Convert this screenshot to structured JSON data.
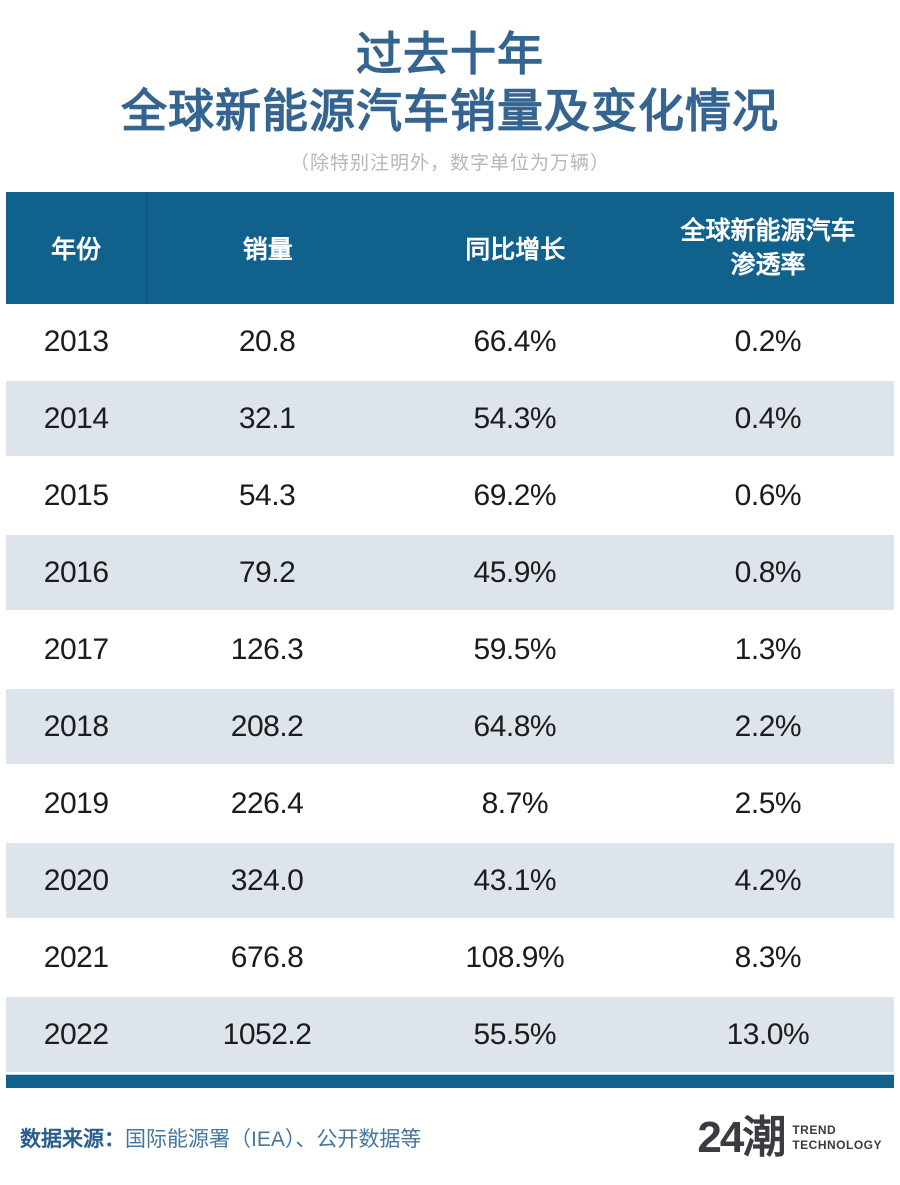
{
  "page": {
    "title_line1": "过去十年",
    "title_line2": "全球新能源汽车销量及变化情况",
    "subtitle": "（除特别注明外，数字单位为万辆）"
  },
  "colors": {
    "title_blue": "#34648f",
    "header_bg": "#11618d",
    "row_alt_bg": "#dde4ec",
    "footer_label_blue": "#2a5e8b",
    "footer_text_blue": "#45779e",
    "logo_dark": "#3b3b41"
  },
  "table": {
    "header": {
      "year": "年份",
      "sales": "销量",
      "yoy": "同比增长",
      "pen_line1": "全球新能源汽车",
      "pen_line2": "渗透率"
    },
    "rows": [
      {
        "year": "2013",
        "sales": "20.8",
        "yoy": "66.4%",
        "pen": "0.2%"
      },
      {
        "year": "2014",
        "sales": "32.1",
        "yoy": "54.3%",
        "pen": "0.4%"
      },
      {
        "year": "2015",
        "sales": "54.3",
        "yoy": "69.2%",
        "pen": "0.6%"
      },
      {
        "year": "2016",
        "sales": "79.2",
        "yoy": "45.9%",
        "pen": "0.8%"
      },
      {
        "year": "2017",
        "sales": "126.3",
        "yoy": "59.5%",
        "pen": "1.3%"
      },
      {
        "year": "2018",
        "sales": "208.2",
        "yoy": "64.8%",
        "pen": "2.2%"
      },
      {
        "year": "2019",
        "sales": "226.4",
        "yoy": "8.7%",
        "pen": "2.5%"
      },
      {
        "year": "2020",
        "sales": "324.0",
        "yoy": "43.1%",
        "pen": "4.2%"
      },
      {
        "year": "2021",
        "sales": "676.8",
        "yoy": "108.9%",
        "pen": "8.3%"
      },
      {
        "year": "2022",
        "sales": "1052.2",
        "yoy": "55.5%",
        "pen": "13.0%"
      }
    ]
  },
  "footer": {
    "source_label": "数据来源：",
    "source_text": "国际能源署（IEA）、公开数据等",
    "logo_mark": "24潮",
    "logo_sub_line1": "TREND",
    "logo_sub_line2": "TECHNOLOGY"
  },
  "chart_data": {
    "type": "table",
    "title": "过去十年全球新能源汽车销量及变化情况",
    "unit_note": "除特别注明外，数字单位为万辆",
    "columns": [
      "年份",
      "销量",
      "同比增长",
      "全球新能源汽车渗透率"
    ],
    "categories": [
      "2013",
      "2014",
      "2015",
      "2016",
      "2017",
      "2018",
      "2019",
      "2020",
      "2021",
      "2022"
    ],
    "series": [
      {
        "name": "销量（万辆）",
        "values": [
          20.8,
          32.1,
          54.3,
          79.2,
          126.3,
          208.2,
          226.4,
          324.0,
          676.8,
          1052.2
        ]
      },
      {
        "name": "同比增长",
        "values": [
          "66.4%",
          "54.3%",
          "69.2%",
          "45.9%",
          "59.5%",
          "64.8%",
          "8.7%",
          "43.1%",
          "108.9%",
          "55.5%"
        ]
      },
      {
        "name": "全球新能源汽车渗透率",
        "values": [
          "0.2%",
          "0.4%",
          "0.6%",
          "0.8%",
          "1.3%",
          "2.2%",
          "2.5%",
          "4.2%",
          "8.3%",
          "13.0%"
        ]
      }
    ],
    "source": "国际能源署（IEA）、公开数据等"
  }
}
